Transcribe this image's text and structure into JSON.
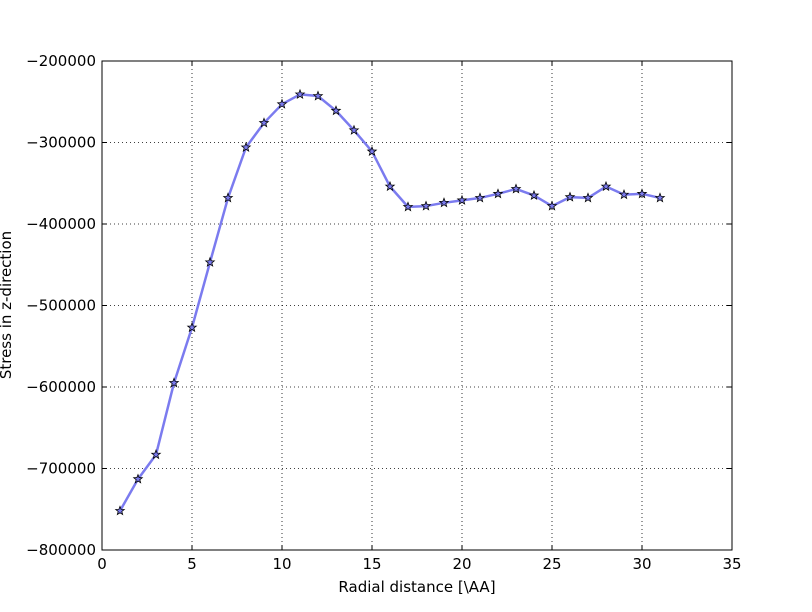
{
  "chart_data": {
    "type": "line",
    "xlabel": "Radial distance [\\AA]",
    "ylabel": "Stress in z-direction",
    "xlim": [
      0,
      35
    ],
    "ylim": [
      -800000,
      -200000
    ],
    "xticks": [
      "0",
      "5",
      "10",
      "15",
      "20",
      "25",
      "30",
      "35"
    ],
    "yticks": [
      "−800000",
      "−700000",
      "−600000",
      "−500000",
      "−400000",
      "−300000",
      "−200000"
    ],
    "grid": true,
    "marker": "star",
    "line_color": "#7b7bef",
    "marker_color": "#7b7bef",
    "series": [
      {
        "x": [
          1,
          2,
          3,
          4,
          5,
          6,
          7,
          8,
          9,
          10,
          11,
          12,
          13,
          14,
          15,
          16,
          17,
          18,
          19,
          20,
          21,
          22,
          23,
          24,
          25,
          26,
          27,
          28,
          29,
          30,
          31
        ],
        "values": [
          -752000,
          -713000,
          -683000,
          -595000,
          -527000,
          -447000,
          -368000,
          -306000,
          -276000,
          -253000,
          -241000,
          -243000,
          -261000,
          -285000,
          -311000,
          -354000,
          -379000,
          -378000,
          -374000,
          -371000,
          -368000,
          -363000,
          -357000,
          -365000,
          -378000,
          -367000,
          -368000,
          -354000,
          -364000,
          -363000,
          -368000
        ]
      }
    ]
  }
}
